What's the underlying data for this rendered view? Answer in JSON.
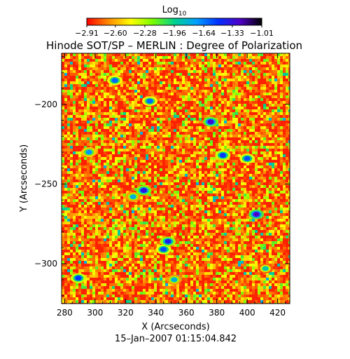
{
  "chart_data": {
    "type": "heatmap",
    "title": "Hinode SOT/SP – MERLIN : Degree of Polarization",
    "timestamp": "15–Jan–2007 01:15:04.842",
    "xlabel": "X (Arcseconds)",
    "ylabel": "Y (Arcseconds)",
    "xlim": [
      278,
      428
    ],
    "ylim": [
      -325,
      -168
    ],
    "x_ticks": [
      280,
      300,
      320,
      340,
      360,
      380,
      400,
      420
    ],
    "y_ticks": [
      -200,
      -250,
      -300
    ],
    "colorbar": {
      "label_base": "Log",
      "label_sub": "10",
      "range": [
        -2.91,
        -1.01
      ],
      "tick_values": [
        -2.91,
        -2.6,
        -2.28,
        -1.96,
        -1.64,
        -1.33,
        -1.01
      ],
      "tick_labels": [
        "−2.91",
        "−2.60",
        "−2.28",
        "−1.96",
        "−1.64",
        "−1.33",
        "−1.01"
      ],
      "colors": [
        "#ff0000",
        "#ff8c00",
        "#ffff00",
        "#7cfc00",
        "#00d28c",
        "#00a0ff",
        "#0030ff",
        "#5000c8",
        "#000000"
      ]
    },
    "field": {
      "background": "#ff2200",
      "dominant_value": -2.91,
      "strong_patches": [
        {
          "x": 289,
          "y": -309,
          "value": -1.5
        },
        {
          "x": 296,
          "y": -230,
          "value": -1.7
        },
        {
          "x": 313,
          "y": -185,
          "value": -1.6
        },
        {
          "x": 325,
          "y": -258,
          "value": -1.8
        },
        {
          "x": 332,
          "y": -254,
          "value": -1.35
        },
        {
          "x": 336,
          "y": -198,
          "value": -1.6
        },
        {
          "x": 345,
          "y": -291,
          "value": -1.55
        },
        {
          "x": 348,
          "y": -286,
          "value": -1.4
        },
        {
          "x": 352,
          "y": -310,
          "value": -1.8
        },
        {
          "x": 376,
          "y": -211,
          "value": -1.3
        },
        {
          "x": 384,
          "y": -232,
          "value": -1.5
        },
        {
          "x": 400,
          "y": -234,
          "value": -1.55
        },
        {
          "x": 406,
          "y": -269,
          "value": -1.25
        },
        {
          "x": 412,
          "y": -303,
          "value": -1.9
        }
      ]
    }
  }
}
